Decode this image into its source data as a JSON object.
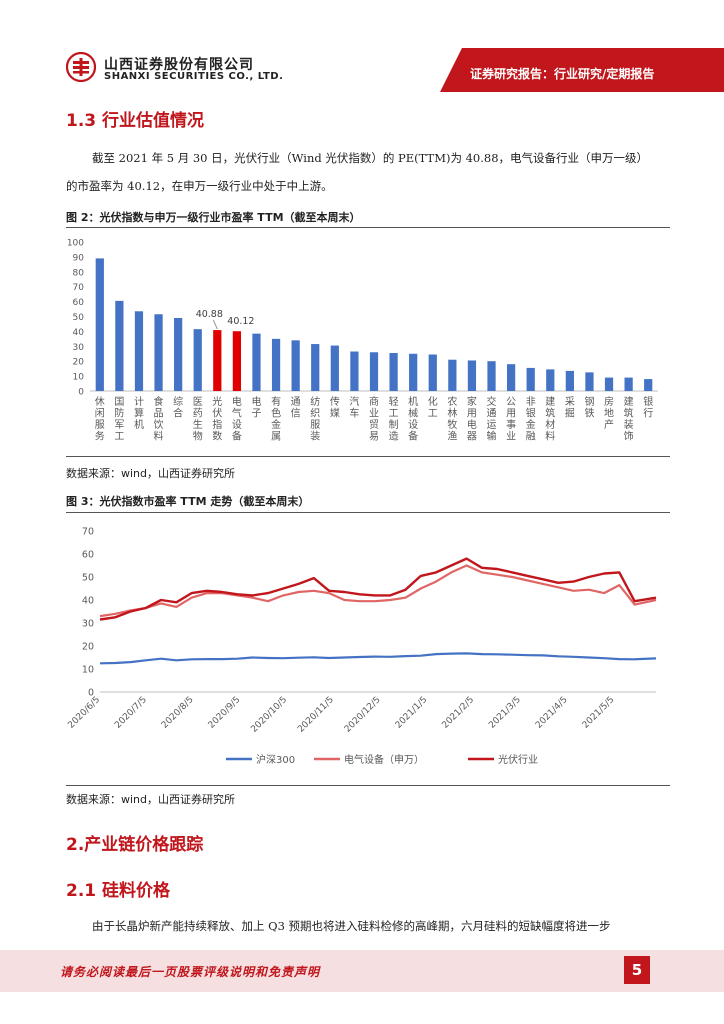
{
  "header": {
    "company_cn": "山西证券股份有限公司",
    "company_en": "SHANXI SECURITIES CO., LTD.",
    "report_type": "证券研究报告：行业研究/定期报告",
    "colors": {
      "brand_red": "#c0161c"
    }
  },
  "section_1_3": {
    "title": "1.3 行业估值情况",
    "para_line1": "截至 2021 年 5 月 30 日，光伏行业（Wind 光伏指数）的 PE(TTM)为 40.88，电气设备行业（申万一级）",
    "para_line2": "的市盈率为 40.12，在申万一级行业中处于中上游。"
  },
  "figure2": {
    "title": "图 2：光伏指数与申万一级行业市盈率 TTM（截至本周末）",
    "source": "数据来源：wind，山西证券研究所"
  },
  "figure3": {
    "title": "图 3：光伏指数市盈率 TTM 走势（截至本周末）",
    "source": "数据来源：wind，山西证券研究所"
  },
  "section_2": {
    "title": "2.产业链价格跟踪"
  },
  "section_2_1": {
    "title": "2.1 硅料价格",
    "para": "由于长晶炉新产能持续释放、加上 Q3 预期也将进入硅料检修的高峰期，六月硅料的短缺幅度将进一步"
  },
  "footer": {
    "disclaimer": "请务必阅读最后一页股票评级说明和免责声明",
    "page_number": "5"
  },
  "chart_data": [
    {
      "type": "bar",
      "title": "光伏指数与申万一级行业市盈率 TTM（截至本周末）",
      "ylim": [
        0,
        100
      ],
      "yticks": [
        0,
        10,
        20,
        30,
        40,
        50,
        60,
        70,
        80,
        90,
        100
      ],
      "categories": [
        "休闲服务",
        "国防军工",
        "计算机",
        "食品饮料",
        "综合",
        "医药生物",
        "光伏指数",
        "电气设备",
        "电子",
        "有色金属",
        "通信",
        "纺织服装",
        "传媒",
        "汽车",
        "商业贸易",
        "轻工制造",
        "机械设备",
        "化工",
        "农林牧渔",
        "家用电器",
        "交通运输",
        "公用事业",
        "非银金融",
        "建筑材料",
        "采掘",
        "钢铁",
        "房地产",
        "建筑装饰",
        "银行"
      ],
      "values": [
        89,
        60.5,
        53.5,
        51.5,
        49,
        41.5,
        40.88,
        40.12,
        38.5,
        35,
        34,
        31.5,
        30.5,
        26.5,
        26,
        25.5,
        25,
        24.5,
        21,
        20.5,
        20,
        18,
        15.5,
        14.5,
        13.5,
        12.5,
        9,
        9,
        8
      ],
      "highlight": [
        6,
        7
      ],
      "data_labels": {
        "6": "40.88",
        "7": "40.12"
      },
      "bar_color": "#4472c4",
      "highlight_color": "#e00000"
    },
    {
      "type": "line",
      "title": "光伏指数市盈率 TTM 走势（截至本周末）",
      "ylim": [
        0,
        70
      ],
      "yticks": [
        0,
        10,
        20,
        30,
        40,
        50,
        60,
        70
      ],
      "x_tick_labels": [
        "2020/6/5",
        "2020/7/5",
        "2020/8/5",
        "2020/9/5",
        "2020/10/5",
        "2020/11/5",
        "2020/12/5",
        "2021/1/5",
        "2021/2/5",
        "2021/3/5",
        "2021/4/5",
        "2021/5/5"
      ],
      "x_range_days": [
        0,
        364
      ],
      "series": [
        {
          "name": "沪深300",
          "color": "#4472c4",
          "x": [
            0,
            10,
            20,
            30,
            40,
            50,
            60,
            70,
            80,
            90,
            100,
            110,
            120,
            130,
            140,
            150,
            160,
            170,
            180,
            190,
            200,
            210,
            220,
            230,
            240,
            250,
            260,
            270,
            280,
            290,
            300,
            310,
            320,
            330,
            340,
            350,
            364
          ],
          "values": [
            12.5,
            12.6,
            13,
            13.8,
            14.5,
            13.8,
            14.2,
            14.3,
            14.3,
            14.5,
            15,
            14.8,
            14.7,
            14.9,
            15.1,
            14.8,
            15,
            15.2,
            15.4,
            15.3,
            15.6,
            15.8,
            16.5,
            16.7,
            16.8,
            16.5,
            16.4,
            16.2,
            16,
            15.9,
            15.5,
            15.3,
            15,
            14.7,
            14.3,
            14.2,
            14.6
          ]
        },
        {
          "name": "电气设备（申万）",
          "color": "#e06666",
          "x": [
            0,
            10,
            20,
            30,
            40,
            50,
            60,
            70,
            80,
            90,
            100,
            110,
            120,
            130,
            140,
            150,
            160,
            170,
            180,
            190,
            200,
            210,
            220,
            230,
            240,
            250,
            260,
            270,
            280,
            290,
            300,
            310,
            320,
            330,
            340,
            350,
            364
          ],
          "values": [
            33,
            34,
            35.5,
            36.5,
            38.5,
            37,
            41,
            43,
            43,
            42,
            41,
            39.5,
            42,
            43.5,
            44,
            43,
            40,
            39.5,
            39.5,
            40,
            41,
            45,
            48,
            52,
            55,
            52,
            51,
            50,
            48.5,
            47,
            45.5,
            44,
            44.5,
            43,
            46.5,
            38,
            40
          ]
        },
        {
          "name": "光伏行业",
          "color": "#c0161c",
          "x": [
            0,
            10,
            20,
            30,
            40,
            50,
            60,
            70,
            80,
            90,
            100,
            110,
            120,
            130,
            140,
            150,
            160,
            170,
            180,
            190,
            200,
            210,
            220,
            230,
            240,
            250,
            260,
            270,
            280,
            290,
            300,
            310,
            320,
            330,
            340,
            350,
            364
          ],
          "values": [
            31.5,
            32.5,
            35,
            36.5,
            40,
            39,
            43,
            44,
            43.5,
            42.5,
            42,
            43,
            45,
            47,
            49.5,
            44,
            43.5,
            42.5,
            42,
            42,
            44.5,
            50.5,
            52,
            55,
            58,
            54,
            53.5,
            52,
            50.5,
            49,
            47.5,
            48,
            50,
            51.5,
            52,
            39.5,
            41
          ]
        }
      ],
      "legend_position": "bottom"
    }
  ]
}
